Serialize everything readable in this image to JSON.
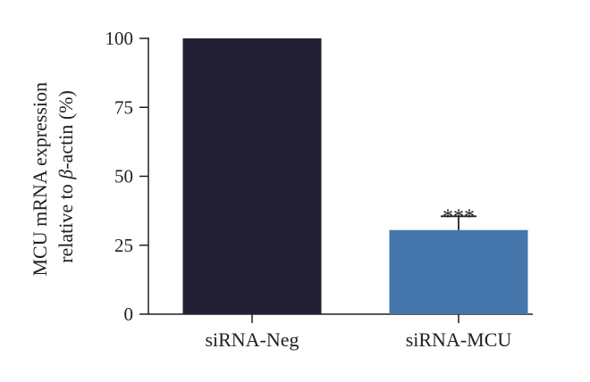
{
  "chart_data": {
    "type": "bar",
    "title": "",
    "xlabel": "",
    "ylabel_line1": "MCU mRNA expression",
    "ylabel_line2_prefix": "relative to ",
    "ylabel_line2_symbol": "β",
    "ylabel_line2_suffix": "-actin (%)",
    "categories": [
      "siRNA-Neg",
      "siRNA-MCU"
    ],
    "values": [
      100,
      30.5
    ],
    "error_upper": [
      0,
      5
    ],
    "significance": [
      "",
      "***"
    ],
    "ylim": [
      0,
      100
    ],
    "yticks": [
      0,
      25,
      50,
      75,
      100
    ],
    "ytick_labels": [
      "0",
      "25",
      "50",
      "75",
      "100"
    ],
    "bar_colors": [
      "#231f33",
      "#4577ad"
    ],
    "grid": false,
    "legend": "none"
  }
}
